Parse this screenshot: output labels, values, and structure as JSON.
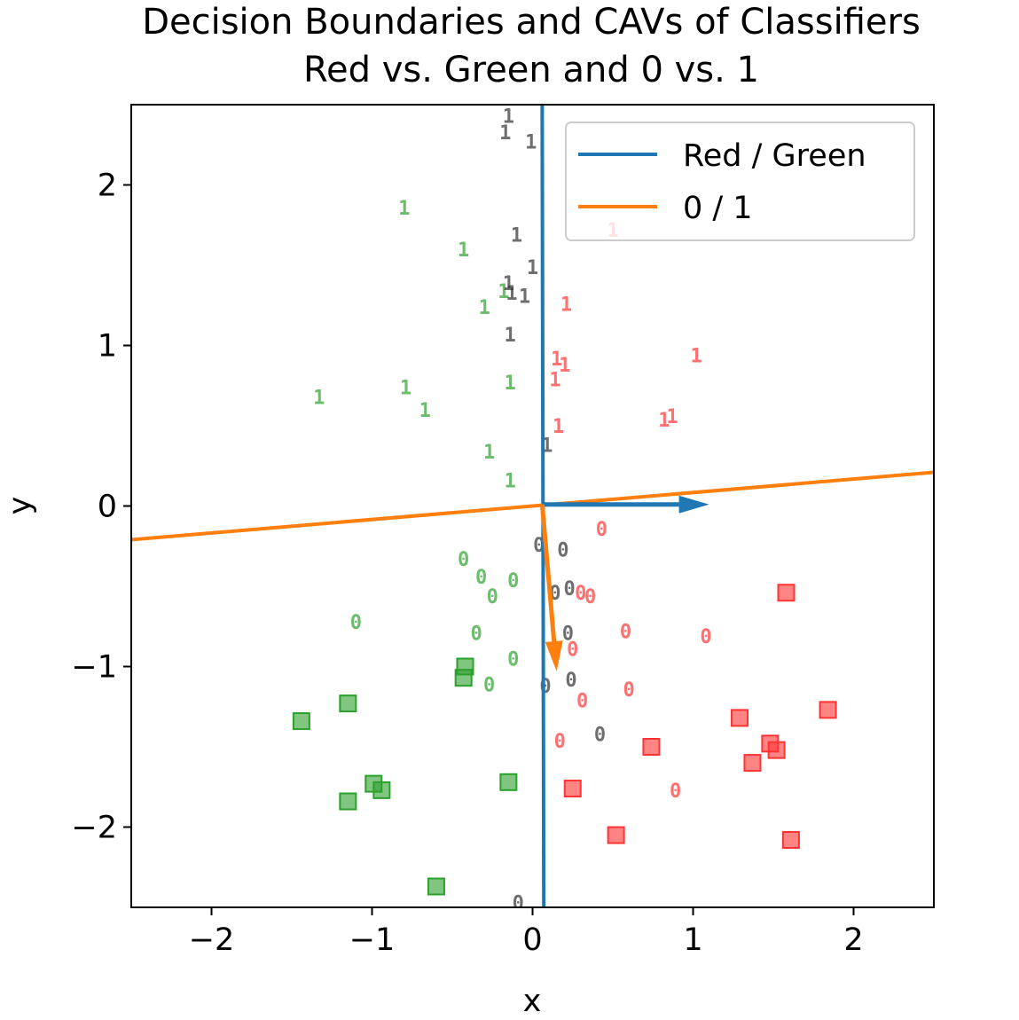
{
  "chart_data": {
    "type": "scatter",
    "title": "Decision Boundaries and CAVs of Classifiers",
    "subtitle": "Red vs. Green and 0 vs. 1",
    "xlabel": "x",
    "ylabel": "y",
    "xlim": [
      -2.5,
      2.5
    ],
    "ylim": [
      -2.5,
      2.5
    ],
    "x_ticks": [
      -2,
      -1,
      0,
      1,
      2
    ],
    "y_ticks": [
      -2,
      -1,
      0,
      1,
      2
    ],
    "x_tick_labels": [
      "−2",
      "−1",
      "0",
      "1",
      "2"
    ],
    "y_tick_labels": [
      "−2",
      "−1",
      "0",
      "1",
      "2"
    ],
    "grid": false,
    "legend_position": "top-right",
    "lines": [
      {
        "name": "Red / Green",
        "color": "#1f77b4",
        "points": [
          [
            0.06,
            2.5
          ],
          [
            0.07,
            -2.5
          ]
        ]
      },
      {
        "name": "0 / 1",
        "color": "#ff7f0e",
        "points": [
          [
            -2.5,
            -0.21
          ],
          [
            2.5,
            0.21
          ]
        ]
      }
    ],
    "cavs": [
      {
        "color": "#1f77b4",
        "from": [
          0.06,
          0.01
        ],
        "to": [
          1.1,
          0.01
        ]
      },
      {
        "color": "#ff7f0e",
        "from": [
          0.06,
          0.01
        ],
        "to": [
          0.15,
          -1.03
        ]
      }
    ],
    "point_groups": [
      {
        "marker": "1",
        "color": "#2ca02c",
        "points": [
          [
            -0.8,
            1.86
          ],
          [
            -0.43,
            1.6
          ],
          [
            -0.18,
            1.34
          ],
          [
            -0.3,
            1.24
          ],
          [
            -1.33,
            0.68
          ],
          [
            -0.79,
            0.74
          ],
          [
            -0.67,
            0.6
          ],
          [
            -0.14,
            0.77
          ],
          [
            -0.27,
            0.34
          ],
          [
            -0.14,
            0.16
          ]
        ]
      },
      {
        "marker": "1",
        "color": "#303030",
        "points": [
          [
            -0.15,
            2.43
          ],
          [
            -0.17,
            2.33
          ],
          [
            -0.01,
            2.27
          ],
          [
            -0.1,
            1.69
          ],
          [
            0.0,
            1.49
          ],
          [
            -0.15,
            1.39
          ],
          [
            -0.13,
            1.33
          ],
          [
            -0.05,
            1.31
          ],
          [
            -0.14,
            1.07
          ],
          [
            0.09,
            0.38
          ]
        ]
      },
      {
        "marker": "1",
        "color": "#ff3333",
        "points": [
          [
            0.5,
            1.72
          ],
          [
            0.21,
            1.26
          ],
          [
            1.02,
            0.94
          ],
          [
            0.15,
            0.92
          ],
          [
            0.2,
            0.88
          ],
          [
            0.14,
            0.79
          ],
          [
            0.16,
            0.5
          ],
          [
            0.82,
            0.54
          ],
          [
            0.87,
            0.56
          ]
        ]
      },
      {
        "marker": "0",
        "color": "#2ca02c",
        "points": [
          [
            -0.43,
            -0.33
          ],
          [
            -0.32,
            -0.44
          ],
          [
            -0.12,
            -0.46
          ],
          [
            -0.25,
            -0.56
          ],
          [
            -1.1,
            -0.72
          ],
          [
            -0.35,
            -0.79
          ],
          [
            -0.12,
            -0.95
          ],
          [
            -0.27,
            -1.11
          ]
        ]
      },
      {
        "marker": "0",
        "color": "#303030",
        "points": [
          [
            0.04,
            -0.24
          ],
          [
            0.19,
            -0.27
          ],
          [
            0.14,
            -0.54
          ],
          [
            0.23,
            -0.51
          ],
          [
            0.22,
            -0.79
          ],
          [
            0.08,
            -1.12
          ],
          [
            0.24,
            -1.08
          ],
          [
            0.42,
            -1.42
          ],
          [
            -0.09,
            -2.47
          ]
        ]
      },
      {
        "marker": "0",
        "color": "#ff3333",
        "points": [
          [
            0.43,
            -0.14
          ],
          [
            0.3,
            -0.54
          ],
          [
            0.36,
            -0.56
          ],
          [
            0.58,
            -0.78
          ],
          [
            1.08,
            -0.81
          ],
          [
            0.25,
            -0.89
          ],
          [
            0.6,
            -1.14
          ],
          [
            0.31,
            -1.21
          ],
          [
            0.17,
            -1.46
          ],
          [
            0.89,
            -1.77
          ]
        ]
      },
      {
        "marker": "square",
        "color": "#2ca02c",
        "points": [
          [
            -0.42,
            -1.0
          ],
          [
            -0.43,
            -1.07
          ],
          [
            -1.15,
            -1.23
          ],
          [
            -1.44,
            -1.34
          ],
          [
            -0.99,
            -1.73
          ],
          [
            -0.94,
            -1.77
          ],
          [
            -1.15,
            -1.84
          ],
          [
            -0.15,
            -1.72
          ],
          [
            -0.6,
            -2.37
          ]
        ]
      },
      {
        "marker": "square",
        "color": "#ff3333",
        "points": [
          [
            1.58,
            -0.54
          ],
          [
            1.29,
            -1.32
          ],
          [
            1.84,
            -1.27
          ],
          [
            1.48,
            -1.48
          ],
          [
            1.52,
            -1.52
          ],
          [
            0.74,
            -1.5
          ],
          [
            1.37,
            -1.6
          ],
          [
            0.25,
            -1.76
          ],
          [
            0.52,
            -2.05
          ],
          [
            1.61,
            -2.08
          ]
        ]
      }
    ]
  }
}
